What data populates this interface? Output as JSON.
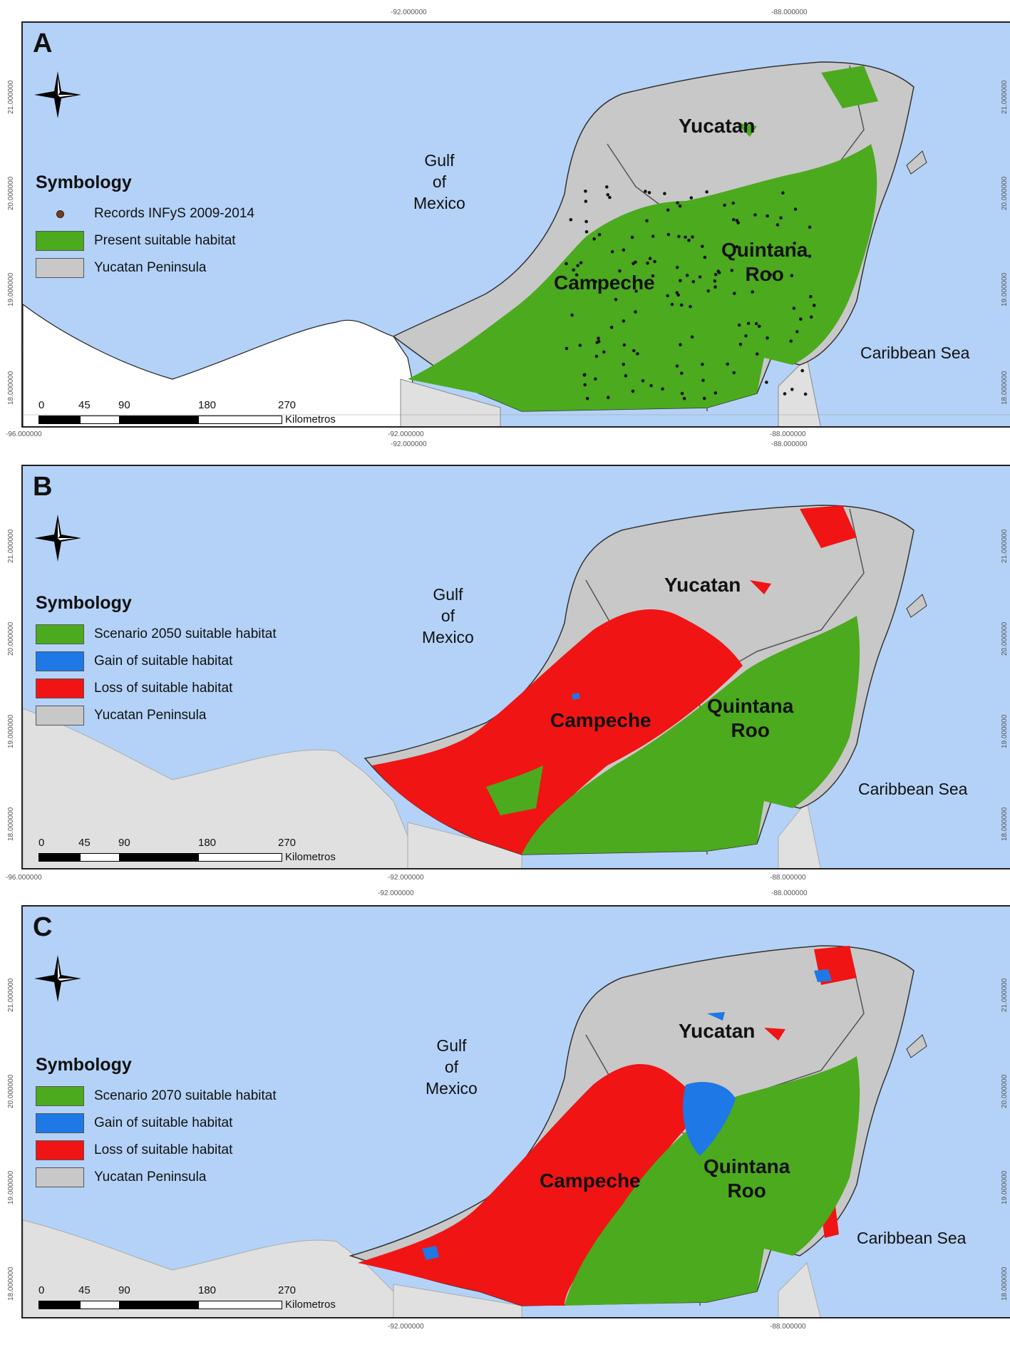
{
  "colors": {
    "sea": "#b4d2f7",
    "peninsula": "#c8c8c8",
    "suitable": "#4caa1e",
    "gain": "#1e78e6",
    "loss": "#f01414",
    "neighbor": "#e0e0e0",
    "record": "#7a3b16"
  },
  "coords": {
    "lon_top": [
      "-92.000000",
      "-88.000000"
    ],
    "lon_bottom": [
      "-96.000000",
      "-92.000000",
      "-88.000000"
    ],
    "lat": [
      "21.000000",
      "20.000000",
      "19.000000",
      "18.000000"
    ]
  },
  "panels": [
    {
      "letter": "A",
      "legend_title": "Symbology",
      "legend_items": [
        {
          "type": "dot",
          "label": "Records INFyS 2009-2014"
        },
        {
          "type": "suitable",
          "label": "Present suitable habitat"
        },
        {
          "type": "peninsula",
          "label": "Yucatan Peninsula"
        }
      ],
      "states": {
        "yucatan": "Yucatan",
        "campeche": "Campeche",
        "quintana_1": "Quintana",
        "quintana_2": "Roo"
      },
      "sea": {
        "gulf_1": "Gulf",
        "gulf_2": "of",
        "gulf_3": "Mexico",
        "caribbean": "Caribbean Sea"
      },
      "scale": {
        "ticks": [
          "0",
          "45",
          "90",
          "180",
          "270"
        ],
        "unit": "Kilometros"
      }
    },
    {
      "letter": "B",
      "legend_title": "Symbology",
      "legend_items": [
        {
          "type": "suitable",
          "label": "Scenario 2050 suitable habitat"
        },
        {
          "type": "gain",
          "label": "Gain of suitable habitat"
        },
        {
          "type": "loss",
          "label": "Loss of suitable habitat"
        },
        {
          "type": "peninsula",
          "label": "Yucatan Peninsula"
        }
      ],
      "states": {
        "yucatan": "Yucatan",
        "campeche": "Campeche",
        "quintana_1": "Quintana",
        "quintana_2": "Roo"
      },
      "sea": {
        "gulf_1": "Gulf",
        "gulf_2": "of",
        "gulf_3": "Mexico",
        "caribbean": "Caribbean Sea"
      },
      "scale": {
        "ticks": [
          "0",
          "45",
          "90",
          "180",
          "270"
        ],
        "unit": "Kilometros"
      }
    },
    {
      "letter": "C",
      "legend_title": "Symbology",
      "legend_items": [
        {
          "type": "suitable",
          "label": "Scenario 2070 suitable habitat"
        },
        {
          "type": "gain",
          "label": "Gain of suitable habitat"
        },
        {
          "type": "loss",
          "label": "Loss of suitable habitat"
        },
        {
          "type": "peninsula",
          "label": "Yucatan Peninsula"
        }
      ],
      "states": {
        "yucatan": "Yucatan",
        "campeche": "Campeche",
        "quintana_1": "Quintana",
        "quintana_2": "Roo"
      },
      "sea": {
        "gulf_1": "Gulf",
        "gulf_2": "of",
        "gulf_3": "Mexico",
        "caribbean": "Caribbean Sea"
      },
      "scale": {
        "ticks": [
          "0",
          "45",
          "90",
          "180",
          "270"
        ],
        "unit": "Kilometros"
      }
    }
  ]
}
